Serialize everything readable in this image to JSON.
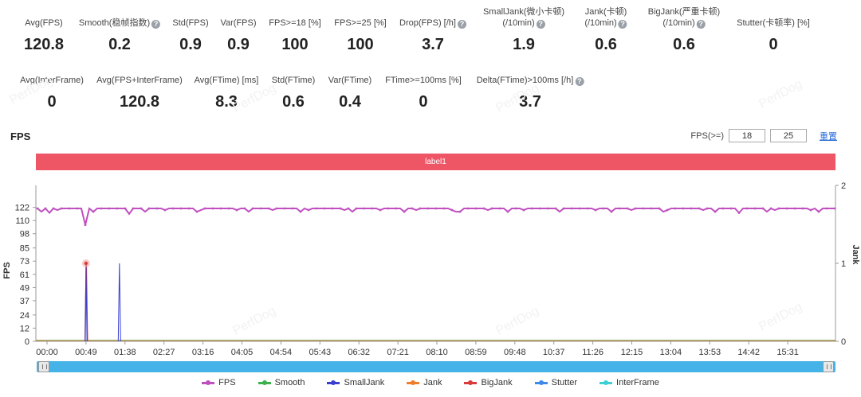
{
  "stats_row1": [
    {
      "label": "Avg(FPS)",
      "value": "120.8",
      "help": false
    },
    {
      "label": "Smooth(稳帧指数)",
      "value": "0.2",
      "help": true
    },
    {
      "label": "Std(FPS)",
      "value": "0.9",
      "help": false
    },
    {
      "label": "Var(FPS)",
      "value": "0.9",
      "help": false
    },
    {
      "label": "FPS>=18 [%]",
      "value": "100",
      "help": false
    },
    {
      "label": "FPS>=25 [%]",
      "value": "100",
      "help": false
    },
    {
      "label": "Drop(FPS) [/h]",
      "value": "3.7",
      "help": true
    },
    {
      "label": "SmallJank(微小卡顿)\n(/10min)",
      "value": "1.9",
      "help": true
    },
    {
      "label": "Jank(卡顿)\n(/10min)",
      "value": "0.6",
      "help": true
    },
    {
      "label": "BigJank(严重卡顿)\n(/10min)",
      "value": "0.6",
      "help": true
    },
    {
      "label": "Stutter(卡顿率) [%]",
      "value": "0",
      "help": false
    }
  ],
  "stats_row2": [
    {
      "label": "Avg(InterFrame)",
      "value": "0",
      "help": false
    },
    {
      "label": "Avg(FPS+InterFrame)",
      "value": "120.8",
      "help": false
    },
    {
      "label": "Avg(FTime) [ms]",
      "value": "8.3",
      "help": false
    },
    {
      "label": "Std(FTime)",
      "value": "0.6",
      "help": false
    },
    {
      "label": "Var(FTime)",
      "value": "0.4",
      "help": false
    },
    {
      "label": "FTime>=100ms [%]",
      "value": "0",
      "help": false
    },
    {
      "label": "Delta(FTime)>100ms [/h]",
      "value": "3.7",
      "help": true
    }
  ],
  "watermark": "PerfDog",
  "section_title": "FPS",
  "fps_filter": {
    "label": "FPS(>=)",
    "value1": "18",
    "value2": "25",
    "reset_label": "重置"
  },
  "label_bar": "label1",
  "chart_data": {
    "type": "line",
    "y_left": {
      "label": "FPS",
      "ticks": [
        0,
        12,
        24,
        37,
        49,
        61,
        73,
        85,
        98,
        110,
        122
      ],
      "range": [
        0,
        142
      ]
    },
    "y_right": {
      "label": "Jank",
      "ticks": [
        0,
        1,
        2
      ],
      "range": [
        0,
        2
      ]
    },
    "x_ticks": [
      "00:00",
      "00:49",
      "01:38",
      "02:27",
      "03:16",
      "04:05",
      "04:54",
      "05:43",
      "06:32",
      "07:21",
      "08:10",
      "08:59",
      "09:48",
      "10:37",
      "11:26",
      "12:15",
      "13:04",
      "13:53",
      "14:42",
      "15:31"
    ],
    "series": [
      {
        "name": "FPS",
        "color": "#c04fc0",
        "typical_value": 121,
        "dips": [
          {
            "t": "00:05",
            "v": 117
          },
          {
            "t": "00:49",
            "v": 106
          },
          {
            "t": "01:45",
            "v": 116
          },
          {
            "t": "08:40",
            "v": 118
          },
          {
            "t": "14:30",
            "v": 117
          }
        ]
      },
      {
        "name": "Smooth",
        "color": "#3cb14a",
        "values": []
      },
      {
        "name": "SmallJank",
        "color": "#3a3fd0",
        "events": [
          {
            "t": "00:49",
            "v": 1
          },
          {
            "t": "01:31",
            "v": 1
          }
        ]
      },
      {
        "name": "Jank",
        "color": "#f07d2a",
        "events": [
          {
            "t": "00:49",
            "v": 1
          }
        ]
      },
      {
        "name": "BigJank",
        "color": "#d93a3a",
        "events": [
          {
            "t": "00:49",
            "v": 1
          }
        ]
      },
      {
        "name": "Stutter",
        "color": "#3d8be8",
        "values": []
      },
      {
        "name": "InterFrame",
        "color": "#3fcfd6",
        "values": []
      }
    ]
  }
}
